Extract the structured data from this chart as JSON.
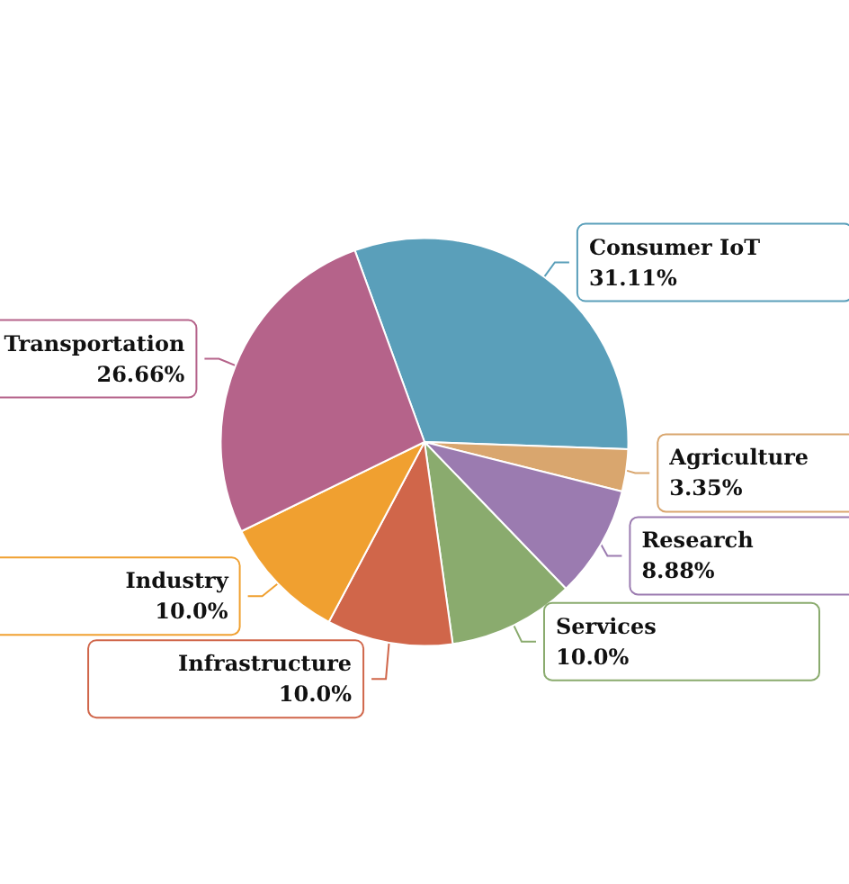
{
  "chart_data": {
    "type": "pie",
    "categories": [
      "Consumer IoT",
      "Agriculture",
      "Research",
      "Services",
      "Infrastructure",
      "Industry",
      "Transportation"
    ],
    "values": [
      31.11,
      3.35,
      8.88,
      10.0,
      10.0,
      10.0,
      26.66
    ],
    "value_labels": [
      "31.11%",
      "3.35%",
      "8.88%",
      "10.0%",
      "10.0%",
      "10.0%",
      "26.66%"
    ],
    "colors": [
      "#5a9fba",
      "#d9a66e",
      "#9b7bb0",
      "#8aab6e",
      "#d0664a",
      "#f0a030",
      "#b5638a"
    ]
  }
}
